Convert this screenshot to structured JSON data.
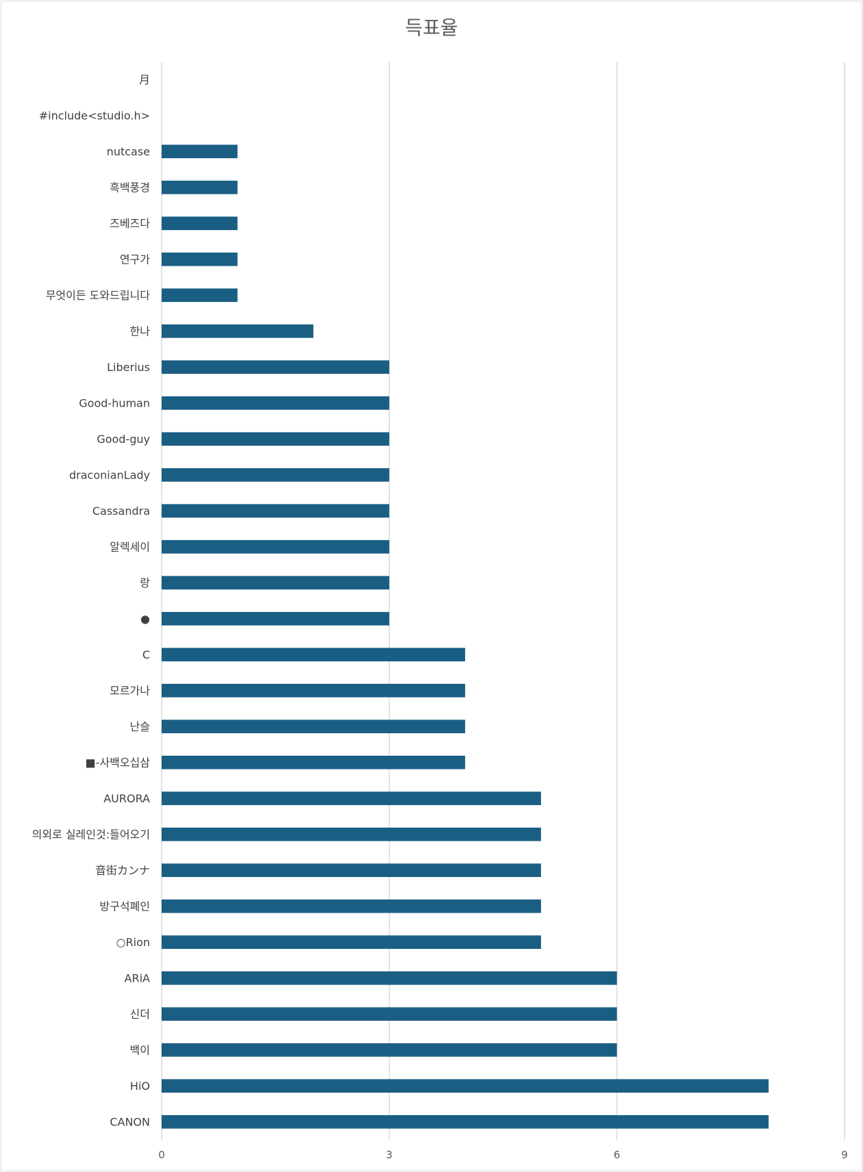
{
  "chart_data": {
    "type": "bar",
    "orientation": "horizontal",
    "title": "득표율",
    "xlabel": "",
    "ylabel": "",
    "xlim": [
      0,
      9
    ],
    "xticks": [
      0,
      3,
      6,
      9
    ],
    "grid": true,
    "legend": "none",
    "bar_color": "#1a5e84",
    "categories": [
      "月",
      "#include<studio.h>",
      "nutcase",
      "흑백풍경",
      "즈베즈다",
      "연구가",
      "무엇이든 도와드립니다",
      "한나",
      "Liberius",
      "Good-human",
      "Good-guy",
      "draconianLady",
      "Cassandra",
      "알렉세이",
      "랑",
      "●",
      "C",
      "모르가나",
      "난슬",
      "■-사백오십삼",
      "AURORA",
      "의외로 실레인것:들어오기",
      "音街カンナ",
      "방구석폐인",
      "○Rion",
      "ARiA",
      "신더",
      "백이",
      "HiO",
      "CANON"
    ],
    "values": [
      0,
      0,
      1,
      1,
      1,
      1,
      1,
      2,
      3,
      3,
      3,
      3,
      3,
      3,
      3,
      3,
      4,
      4,
      4,
      4,
      5,
      5,
      5,
      5,
      5,
      6,
      6,
      6,
      8,
      8
    ]
  }
}
